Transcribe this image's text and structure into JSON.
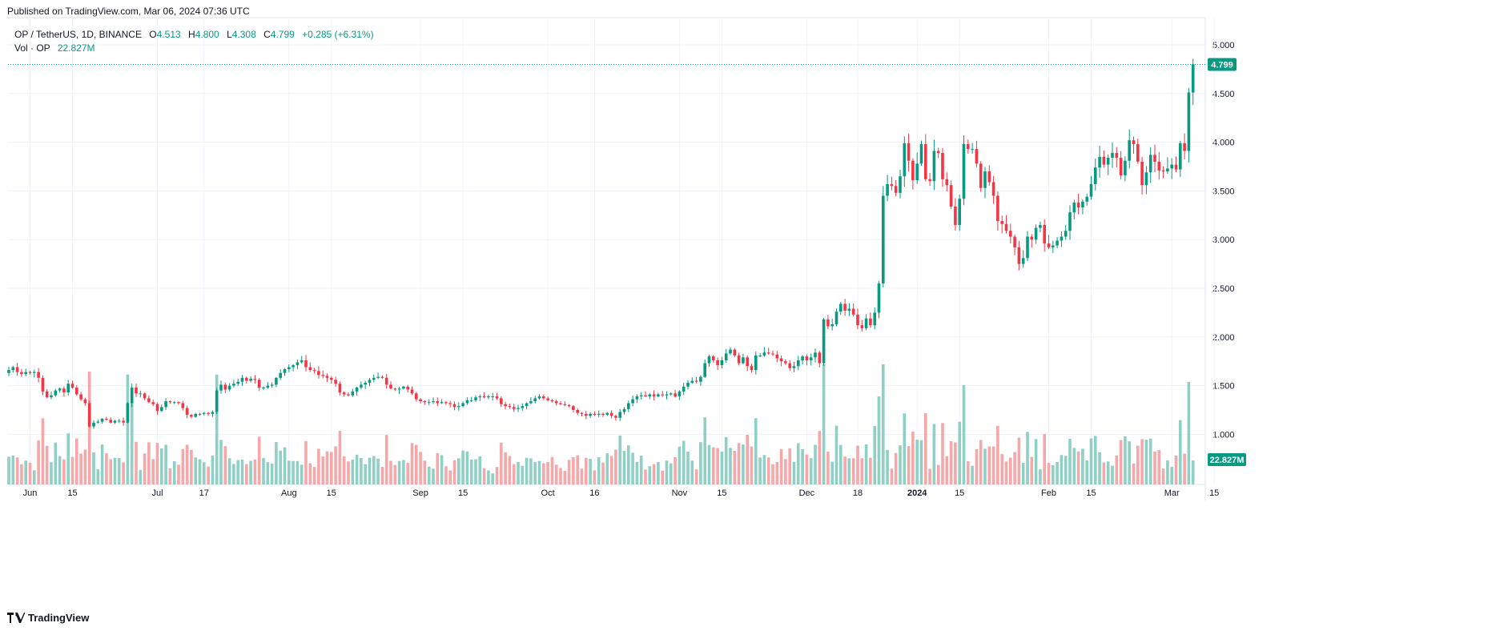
{
  "header": {
    "published": "Published on TradingView.com, Mar 06, 2024 07:36 UTC"
  },
  "legend": {
    "symbol": "OP / TetherUS, 1D, BINANCE",
    "o_label": "O",
    "o_value": "4.513",
    "h_label": "H",
    "h_value": "4.800",
    "l_label": "L",
    "l_value": "4.308",
    "c_label": "C",
    "c_value": "4.799",
    "change": "+0.285 (+6.31%)",
    "vol_label": "Vol · OP",
    "vol_value": "22.827M"
  },
  "price_badge": "4.799",
  "volume_badge": "22.827M",
  "footer": {
    "brand": "TradingView",
    "logo_icon": "tradingview-logo-icon"
  },
  "colors": {
    "up": "#089981",
    "down": "#f23645",
    "vol_up": "#8fd0c5",
    "vol_down": "#f5a7aa",
    "grid": "#f0f3fa"
  },
  "chart_data": {
    "type": "candlestick",
    "symbol": "OP / TetherUS",
    "interval": "1D",
    "exchange": "BINANCE",
    "y_ticks": [
      "5.000",
      "4.500",
      "4.000",
      "3.500",
      "3.000",
      "2.500",
      "2.000",
      "1.500",
      "1.000"
    ],
    "ylim": [
      0.5,
      5.2
    ],
    "x_ticks": [
      "Jun",
      "15",
      "Jul",
      "17",
      "Aug",
      "15",
      "Sep",
      "15",
      "Oct",
      "16",
      "Nov",
      "15",
      "Dec",
      "18",
      "2024",
      "15",
      "Feb",
      "15",
      "Mar",
      "15"
    ],
    "x_tick_days": [
      5,
      15,
      35,
      46,
      66,
      76,
      97,
      107,
      127,
      138,
      158,
      168,
      188,
      200,
      214,
      224,
      245,
      255,
      274,
      284
    ],
    "start_date": "2023-05-27",
    "last_close_line": 4.799,
    "legend_placement": "top-left",
    "grid": true,
    "closes": [
      1.66,
      1.69,
      1.64,
      1.62,
      1.64,
      1.63,
      1.64,
      1.58,
      1.44,
      1.38,
      1.4,
      1.45,
      1.47,
      1.43,
      1.52,
      1.48,
      1.41,
      1.36,
      1.32,
      1.08,
      1.12,
      1.13,
      1.16,
      1.15,
      1.12,
      1.14,
      1.14,
      1.12,
      1.32,
      1.48,
      1.42,
      1.42,
      1.37,
      1.33,
      1.31,
      1.24,
      1.28,
      1.34,
      1.33,
      1.33,
      1.32,
      1.27,
      1.2,
      1.18,
      1.21,
      1.21,
      1.22,
      1.21,
      1.23,
      1.45,
      1.51,
      1.46,
      1.5,
      1.52,
      1.54,
      1.58,
      1.55,
      1.57,
      1.56,
      1.48,
      1.48,
      1.5,
      1.51,
      1.58,
      1.63,
      1.67,
      1.69,
      1.71,
      1.74,
      1.76,
      1.69,
      1.66,
      1.65,
      1.61,
      1.6,
      1.58,
      1.56,
      1.52,
      1.43,
      1.41,
      1.4,
      1.44,
      1.48,
      1.51,
      1.53,
      1.56,
      1.58,
      1.59,
      1.58,
      1.51,
      1.47,
      1.46,
      1.47,
      1.49,
      1.46,
      1.42,
      1.36,
      1.34,
      1.33,
      1.33,
      1.34,
      1.32,
      1.33,
      1.32,
      1.31,
      1.28,
      1.29,
      1.32,
      1.35,
      1.35,
      1.38,
      1.39,
      1.38,
      1.39,
      1.39,
      1.37,
      1.31,
      1.29,
      1.28,
      1.26,
      1.27,
      1.29,
      1.32,
      1.34,
      1.37,
      1.39,
      1.37,
      1.35,
      1.34,
      1.32,
      1.31,
      1.3,
      1.29,
      1.25,
      1.22,
      1.21,
      1.19,
      1.21,
      1.2,
      1.21,
      1.2,
      1.22,
      1.19,
      1.17,
      1.23,
      1.26,
      1.32,
      1.36,
      1.39,
      1.4,
      1.39,
      1.41,
      1.39,
      1.41,
      1.4,
      1.41,
      1.42,
      1.39,
      1.44,
      1.49,
      1.53,
      1.55,
      1.54,
      1.59,
      1.73,
      1.8,
      1.76,
      1.71,
      1.76,
      1.83,
      1.87,
      1.81,
      1.73,
      1.79,
      1.7,
      1.66,
      1.81,
      1.81,
      1.84,
      1.83,
      1.82,
      1.78,
      1.75,
      1.73,
      1.68,
      1.7,
      1.76,
      1.8,
      1.76,
      1.79,
      1.84,
      1.73,
      2.18,
      2.11,
      2.13,
      2.26,
      2.34,
      2.27,
      2.29,
      2.23,
      2.12,
      2.09,
      2.19,
      2.12,
      2.25,
      2.55,
      3.45,
      3.57,
      3.55,
      3.48,
      3.65,
      3.99,
      3.81,
      3.61,
      3.78,
      3.98,
      3.62,
      3.6,
      3.91,
      3.89,
      3.62,
      3.56,
      3.34,
      3.15,
      3.42,
      3.98,
      3.93,
      3.93,
      3.78,
      3.53,
      3.7,
      3.59,
      3.45,
      3.19,
      3.16,
      3.09,
      3.03,
      2.92,
      2.75,
      2.81,
      3.03,
      3.0,
      3.12,
      3.15,
      2.96,
      2.92,
      2.94,
      2.99,
      3.03,
      3.09,
      3.28,
      3.38,
      3.33,
      3.39,
      3.44,
      3.57,
      3.74,
      3.85,
      3.77,
      3.84,
      3.89,
      3.84,
      3.66,
      3.81,
      4.02,
      3.98,
      3.8,
      3.56,
      3.69,
      3.87,
      3.8,
      3.71,
      3.7,
      3.73,
      3.77,
      3.72,
      3.99,
      3.91,
      4.51,
      4.8
    ],
    "note_units": "price in USDT"
  }
}
